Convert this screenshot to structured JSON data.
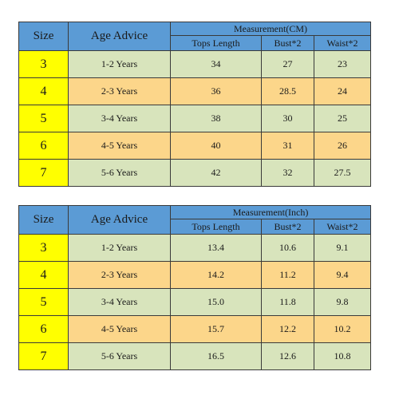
{
  "tables": [
    {
      "header": {
        "size": "Size",
        "age": "Age Advice",
        "measurement": "Measurement(CM)",
        "tops": "Tops Length",
        "bust": "Bust*2",
        "waist": "Waist*2"
      },
      "rows": [
        {
          "size": "3",
          "age": "1-2 Years",
          "tops": "34",
          "bust": "27",
          "waist": "23"
        },
        {
          "size": "4",
          "age": "2-3 Years",
          "tops": "36",
          "bust": "28.5",
          "waist": "24"
        },
        {
          "size": "5",
          "age": "3-4 Years",
          "tops": "38",
          "bust": "30",
          "waist": "25"
        },
        {
          "size": "6",
          "age": "4-5 Years",
          "tops": "40",
          "bust": "31",
          "waist": "26"
        },
        {
          "size": "7",
          "age": "5-6 Years",
          "tops": "42",
          "bust": "32",
          "waist": "27.5"
        }
      ]
    },
    {
      "header": {
        "size": "Size",
        "age": "Age Advice",
        "measurement": "Measurement(Inch)",
        "tops": "Tops Length",
        "bust": "Bust*2",
        "waist": "Waist*2"
      },
      "rows": [
        {
          "size": "3",
          "age": "1-2 Years",
          "tops": "13.4",
          "bust": "10.6",
          "waist": "9.1"
        },
        {
          "size": "4",
          "age": "2-3 Years",
          "tops": "14.2",
          "bust": "11.2",
          "waist": "9.4"
        },
        {
          "size": "5",
          "age": "3-4 Years",
          "tops": "15.0",
          "bust": "11.8",
          "waist": "9.8"
        },
        {
          "size": "6",
          "age": "4-5 Years",
          "tops": "15.7",
          "bust": "12.2",
          "waist": "10.2"
        },
        {
          "size": "7",
          "age": "5-6 Years",
          "tops": "16.5",
          "bust": "12.6",
          "waist": "10.8"
        }
      ]
    }
  ],
  "colors": {
    "header_blue": "#5b9bd5",
    "size_yellow": "#ffff00",
    "row_green": "#d8e4bc",
    "row_orange": "#fcd68a"
  }
}
